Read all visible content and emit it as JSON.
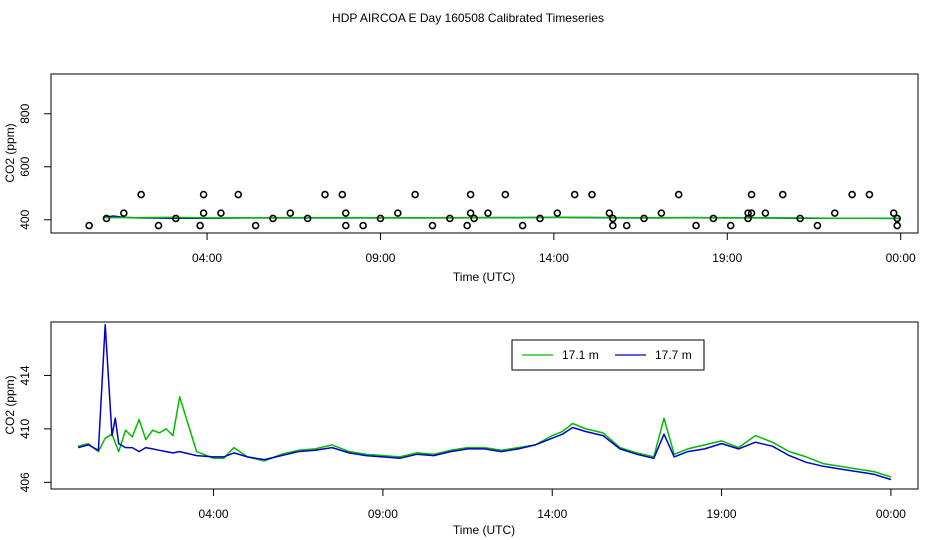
{
  "title": "HDP AIRCOA E  Day 160508  Calibrated Timeseries",
  "chart_data": [
    {
      "type": "line",
      "xlabel": "Time (UTC)",
      "ylabel": "CO2 (ppm)",
      "x_unit": "hours since 00:00 UTC",
      "xlim": [
        -0.5,
        24.5
      ],
      "ylim": [
        350,
        950
      ],
      "x_ticks": [
        {
          "v": 4,
          "label": "04:00"
        },
        {
          "v": 9,
          "label": "09:00"
        },
        {
          "v": 14,
          "label": "14:00"
        },
        {
          "v": 19,
          "label": "19:00"
        },
        {
          "v": 24,
          "label": "00:00"
        }
      ],
      "y_ticks": [
        {
          "v": 400,
          "label": "400"
        },
        {
          "v": 600,
          "label": "600"
        },
        {
          "v": 800,
          "label": "800"
        }
      ],
      "grid": false,
      "line_series": [
        {
          "color": "#0000cc",
          "x": [
            1.0,
            1.3,
            1.6,
            2.0,
            3.0,
            4.0,
            5.0,
            6.0,
            7.0,
            8.0,
            9.0,
            10.0,
            11.0,
            12.0,
            13.0,
            14.0,
            15.0,
            16.0,
            17.0,
            18.0,
            19.0,
            20.0,
            21.0,
            22.0,
            23.0,
            24.0
          ],
          "y": [
            408,
            414,
            409,
            407,
            406,
            406,
            407,
            407,
            407,
            407,
            407,
            407,
            407,
            408,
            408,
            409,
            408,
            407,
            407,
            408,
            407,
            407,
            406,
            406,
            406,
            405
          ]
        },
        {
          "color": "#00bb00",
          "x": [
            1.0,
            2.0,
            3.0,
            4.0,
            5.0,
            6.0,
            7.0,
            8.0,
            9.0,
            10.0,
            11.0,
            12.0,
            13.0,
            14.0,
            15.0,
            16.0,
            17.0,
            18.0,
            19.0,
            20.0,
            21.0,
            22.0,
            23.0,
            24.0
          ],
          "y": [
            408,
            408,
            409,
            407,
            407,
            408,
            408,
            408,
            408,
            407,
            408,
            408,
            408,
            409,
            409,
            408,
            408,
            408,
            408,
            407,
            407,
            406,
            406,
            405
          ]
        }
      ],
      "point_series": {
        "marker": "open-circle",
        "x": [
          0.6,
          1.1,
          1.6,
          2.1,
          2.6,
          3.1,
          3.8,
          3.9,
          3.9,
          4.4,
          4.9,
          5.4,
          5.9,
          6.4,
          6.9,
          7.4,
          7.9,
          8.0,
          8.0,
          8.5,
          9.0,
          9.5,
          10.0,
          10.5,
          11.0,
          11.5,
          11.6,
          11.6,
          11.7,
          12.1,
          12.6,
          13.1,
          13.6,
          14.1,
          14.6,
          15.1,
          15.6,
          15.7,
          15.7,
          16.1,
          16.6,
          17.1,
          17.6,
          18.1,
          18.6,
          19.1,
          19.6,
          19.6,
          19.7,
          19.7,
          20.1,
          20.6,
          21.1,
          21.6,
          22.1,
          22.6,
          23.1,
          23.8,
          23.9,
          23.9
        ],
        "y": [
          378,
          405,
          425,
          495,
          378,
          405,
          378,
          425,
          495,
          425,
          495,
          378,
          405,
          425,
          405,
          495,
          495,
          425,
          378,
          378,
          405,
          425,
          495,
          378,
          405,
          378,
          425,
          495,
          405,
          425,
          495,
          378,
          405,
          425,
          495,
          495,
          425,
          378,
          405,
          378,
          405,
          425,
          495,
          378,
          405,
          378,
          405,
          425,
          495,
          425,
          425,
          495,
          405,
          378,
          425,
          495,
          495,
          425,
          378,
          405
        ]
      }
    },
    {
      "type": "line",
      "xlabel": "Time (UTC)",
      "ylabel": "CO2 (ppm)",
      "x_unit": "hours since 00:00 UTC",
      "xlim": [
        -0.8,
        24.8
      ],
      "ylim": [
        405.5,
        418.0
      ],
      "x_ticks": [
        {
          "v": 4,
          "label": "04:00"
        },
        {
          "v": 9,
          "label": "09:00"
        },
        {
          "v": 14,
          "label": "14:00"
        },
        {
          "v": 19,
          "label": "19:00"
        },
        {
          "v": 24,
          "label": "00:00"
        }
      ],
      "y_ticks": [
        {
          "v": 406,
          "label": "406"
        },
        {
          "v": 410,
          "label": "410"
        },
        {
          "v": 414,
          "label": "414"
        }
      ],
      "grid": false,
      "legend_position": "top-right",
      "series": [
        {
          "name": "17.1 m",
          "color": "#00bb00",
          "x": [
            0.0,
            0.3,
            0.6,
            0.8,
            1.0,
            1.2,
            1.4,
            1.6,
            1.8,
            2.0,
            2.2,
            2.4,
            2.6,
            2.8,
            3.0,
            3.5,
            4.0,
            4.3,
            4.6,
            5.0,
            5.5,
            6.0,
            6.5,
            7.0,
            7.5,
            8.0,
            8.5,
            9.0,
            9.5,
            10.0,
            10.5,
            11.0,
            11.5,
            12.0,
            12.5,
            13.0,
            13.5,
            14.0,
            14.3,
            14.6,
            15.0,
            15.5,
            16.0,
            16.5,
            17.0,
            17.3,
            17.6,
            18.0,
            18.5,
            19.0,
            19.5,
            20.0,
            20.5,
            21.0,
            21.5,
            22.0,
            22.5,
            23.0,
            23.5,
            24.0
          ],
          "y": [
            408.7,
            408.9,
            408.3,
            409.3,
            409.6,
            408.3,
            409.9,
            409.4,
            410.7,
            409.2,
            409.9,
            409.7,
            410.0,
            409.5,
            412.4,
            408.3,
            407.8,
            407.8,
            408.6,
            407.9,
            407.6,
            408.1,
            408.4,
            408.5,
            408.8,
            408.3,
            408.1,
            408.0,
            407.9,
            408.2,
            408.1,
            408.4,
            408.6,
            408.6,
            408.4,
            408.6,
            408.8,
            409.5,
            409.8,
            410.4,
            410.0,
            409.7,
            408.6,
            408.2,
            407.9,
            410.8,
            408.1,
            408.5,
            408.8,
            409.1,
            408.6,
            409.5,
            409.0,
            408.3,
            407.9,
            407.4,
            407.2,
            407.0,
            406.8,
            406.4
          ]
        },
        {
          "name": "17.7 m",
          "color": "#0000cc",
          "x": [
            0.0,
            0.3,
            0.6,
            0.8,
            1.0,
            1.1,
            1.2,
            1.4,
            1.6,
            1.8,
            2.0,
            2.2,
            2.4,
            2.6,
            2.8,
            3.0,
            3.5,
            4.0,
            4.3,
            4.6,
            5.0,
            5.5,
            6.0,
            6.5,
            7.0,
            7.5,
            8.0,
            8.5,
            9.0,
            9.5,
            10.0,
            10.5,
            11.0,
            11.5,
            12.0,
            12.5,
            13.0,
            13.5,
            14.0,
            14.3,
            14.6,
            15.0,
            15.5,
            16.0,
            16.5,
            17.0,
            17.3,
            17.6,
            18.0,
            18.5,
            19.0,
            19.5,
            20.0,
            20.5,
            21.0,
            21.5,
            22.0,
            22.5,
            23.0,
            23.5,
            24.0
          ],
          "y": [
            408.6,
            408.8,
            408.4,
            417.8,
            409.5,
            410.8,
            408.9,
            408.6,
            408.6,
            408.3,
            408.6,
            408.5,
            408.4,
            408.3,
            408.2,
            408.3,
            408.0,
            407.9,
            407.9,
            408.2,
            407.9,
            407.7,
            408.0,
            408.3,
            408.4,
            408.6,
            408.2,
            408.0,
            407.9,
            407.8,
            408.1,
            408.0,
            408.3,
            408.5,
            408.5,
            408.3,
            408.5,
            408.8,
            409.3,
            409.6,
            410.1,
            409.8,
            409.5,
            408.5,
            408.1,
            407.8,
            409.6,
            407.9,
            408.3,
            408.5,
            408.9,
            408.5,
            409.0,
            408.7,
            408.0,
            407.5,
            407.2,
            407.0,
            406.8,
            406.6,
            406.2
          ]
        }
      ]
    }
  ]
}
